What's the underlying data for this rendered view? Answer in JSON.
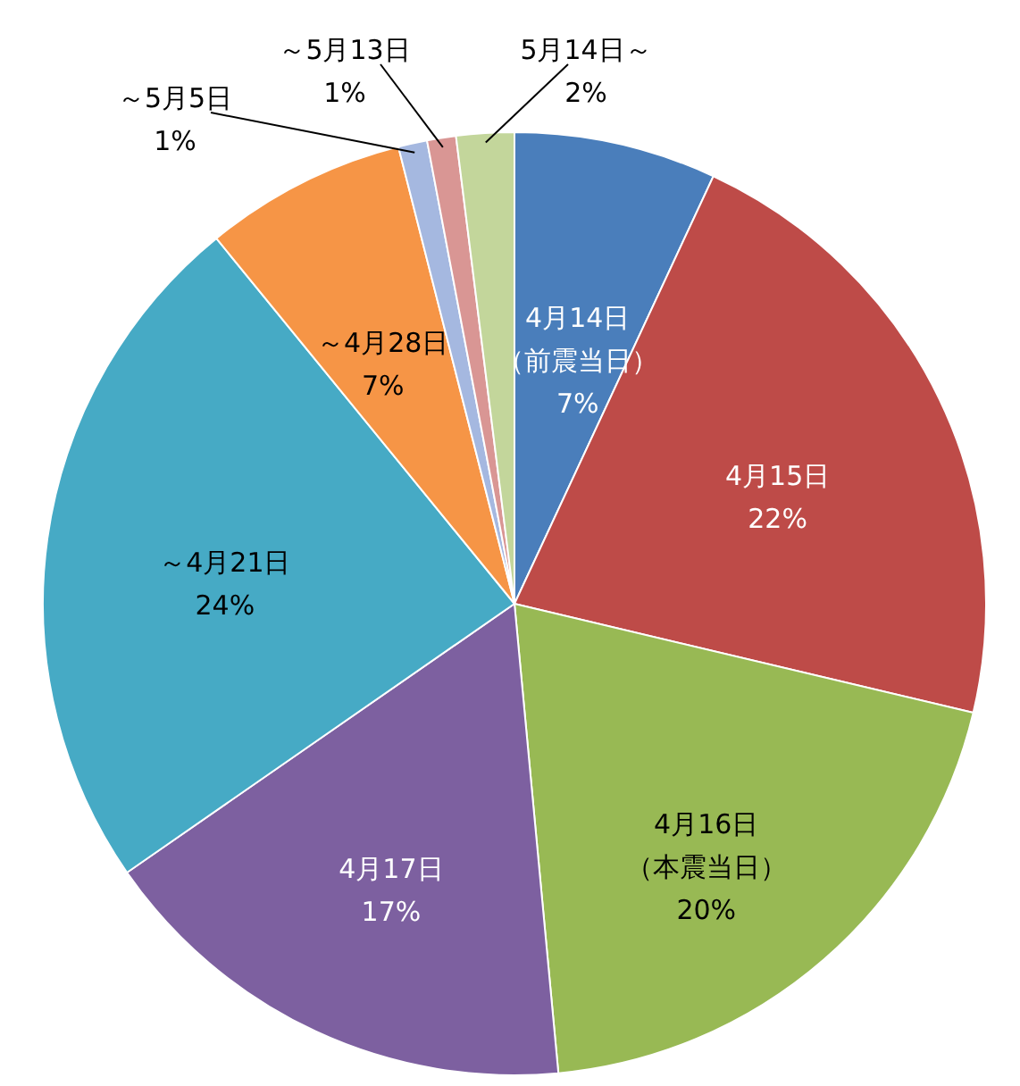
{
  "chart_data": {
    "type": "pie",
    "categories": [
      "4月14日（前震当日）",
      "4月15日",
      "4月16日（本震当日）",
      "4月17日",
      "～4月21日",
      "～4月28日",
      "～5月5日",
      "～5月13日",
      "5月14日～"
    ],
    "values": [
      7,
      22,
      20,
      17,
      24,
      7,
      1,
      1,
      2
    ],
    "value_labels": [
      "7%",
      "22%",
      "20%",
      "17%",
      "24%",
      "7%",
      "1%",
      "1%",
      "2%"
    ],
    "colors": [
      "#4a7ebb",
      "#be4b48",
      "#98b954",
      "#7d60a0",
      "#46aac5",
      "#f69546",
      "#a5b8e0",
      "#d99694",
      "#c3d69b"
    ]
  }
}
